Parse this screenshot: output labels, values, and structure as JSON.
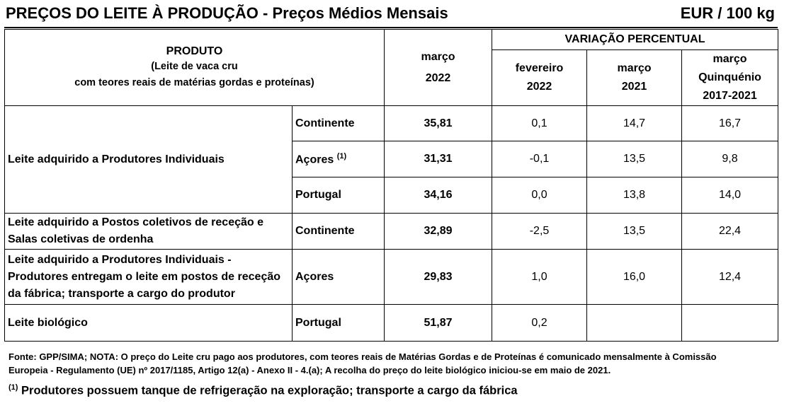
{
  "header": {
    "title": "PREÇOS DO LEITE À PRODUÇÃO - Preços Médios Mensais",
    "unit": "EUR / 100 kg"
  },
  "columns": {
    "produto": "PRODUTO",
    "produto_sub1": "(Leite de vaca cru",
    "produto_sub2": "com teores reais de matérias gordas e proteínas)",
    "current_month": "março",
    "current_year": "2022",
    "variation": "VARIAÇÃO PERCENTUAL",
    "var1_month": "fevereiro",
    "var1_year": "2022",
    "var2_month": "março",
    "var2_year": "2021",
    "var3_month": "março",
    "var3_label": "Quinquénio",
    "var3_years": "2017-2021"
  },
  "rows": [
    {
      "product": "Leite adquirido a Produtores Individuais",
      "region": "Continente",
      "price": "35,81",
      "v1": "0,1",
      "v2": "14,7",
      "v3": "16,7"
    },
    {
      "product": "",
      "region": "Açores",
      "region_note": "(1)",
      "price": "31,31",
      "v1": "-0,1",
      "v2": "13,5",
      "v3": "9,8"
    },
    {
      "product": "",
      "region": "Portugal",
      "price": "34,16",
      "v1": "0,0",
      "v2": "13,8",
      "v3": "14,0"
    },
    {
      "product_l1": "Leite adquirido a Postos coletivos de receção e",
      "product_l2": "Salas coletivas de ordenha",
      "region": "Continente",
      "price": "32,89",
      "v1": "-2,5",
      "v2": "13,5",
      "v3": "22,4"
    },
    {
      "product_l1": "Leite adquirido a Produtores Individuais -",
      "product_l2": "Produtores entregam o leite em postos de receção",
      "product_l3": "da fábrica; transporte a cargo do produtor",
      "region": "Açores",
      "price": "29,83",
      "v1": "1,0",
      "v2": "16,0",
      "v3": "12,4"
    },
    {
      "product": "Leite biológico",
      "region": "Portugal",
      "price": "51,87",
      "v1": "0,2",
      "v2": "",
      "v3": ""
    }
  ],
  "notes": {
    "source_l1": "Fonte: GPP/SIMA; NOTA: O preço do Leite cru pago aos produtores, com teores reais de Matérias Gordas e de Proteínas é comunicado mensalmente à  Comissão",
    "source_l2": "Europeia - Regulamento (UE) nº 2017/1185, Artigo 12(a) - Anexo II - 4.(a); A recolha do preço do leite biológico iniciou-se em maio de 2021.",
    "footnote_mark": "(1)",
    "footnote_text": "Produtores possuem tanque de refrigeração na exploração; transporte a cargo da fábrica"
  }
}
